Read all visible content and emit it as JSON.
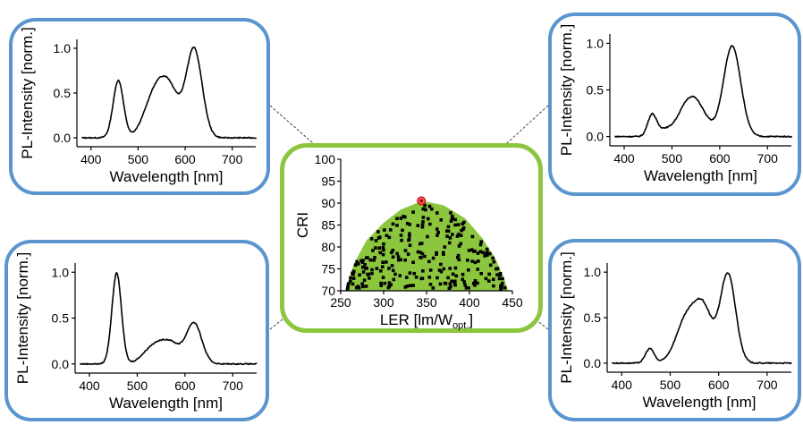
{
  "chart_data": [
    {
      "type": "line",
      "panel": "top-left",
      "xlabel": "Wavelength [nm]",
      "ylabel": "PL-Intensity [norm.]",
      "xlim": [
        370,
        750
      ],
      "ylim": [
        -0.1,
        1.1
      ],
      "xticks": [
        400,
        500,
        600,
        700
      ],
      "yticks": [
        0.0,
        0.5,
        1.0
      ],
      "peaks": [
        {
          "center": 458,
          "height": 0.64,
          "width": 11
        },
        {
          "center": 535,
          "height": 0.47,
          "width": 22
        },
        {
          "center": 568,
          "height": 0.47,
          "width": 20
        },
        {
          "center": 619,
          "height": 0.99,
          "width": 17
        }
      ]
    },
    {
      "type": "line",
      "panel": "top-right",
      "xlabel": "Wavelength [nm]",
      "ylabel": "PL-Intensity [norm.]",
      "xlim": [
        370,
        750
      ],
      "ylim": [
        -0.1,
        1.1
      ],
      "xticks": [
        400,
        500,
        600,
        700
      ],
      "yticks": [
        0.0,
        0.5,
        1.0
      ],
      "peaks": [
        {
          "center": 458,
          "height": 0.22,
          "width": 9
        },
        {
          "center": 478,
          "height": 0.06,
          "width": 14
        },
        {
          "center": 542,
          "height": 0.43,
          "width": 26
        },
        {
          "center": 626,
          "height": 0.97,
          "width": 18
        }
      ]
    },
    {
      "type": "line",
      "panel": "bottom-left",
      "xlabel": "Wavelength [nm]",
      "ylabel": "PL-Intensity [norm.]",
      "xlim": [
        370,
        750
      ],
      "ylim": [
        -0.1,
        1.1
      ],
      "xticks": [
        400,
        500,
        600,
        700
      ],
      "yticks": [
        0.0,
        0.5,
        1.0
      ],
      "peaks": [
        {
          "center": 457,
          "height": 0.99,
          "width": 10
        },
        {
          "center": 535,
          "height": 0.19,
          "width": 22
        },
        {
          "center": 572,
          "height": 0.2,
          "width": 20
        },
        {
          "center": 619,
          "height": 0.44,
          "width": 16
        }
      ]
    },
    {
      "type": "line",
      "panel": "bottom-right",
      "xlabel": "Wavelength [nm]",
      "ylabel": "PL-Intensity [norm.]",
      "xlim": [
        370,
        750
      ],
      "ylim": [
        -0.1,
        1.1
      ],
      "xticks": [
        400,
        500,
        600,
        700
      ],
      "yticks": [
        0.0,
        0.5,
        1.0
      ],
      "peaks": [
        {
          "center": 458,
          "height": 0.16,
          "width": 9
        },
        {
          "center": 535,
          "height": 0.5,
          "width": 22
        },
        {
          "center": 570,
          "height": 0.52,
          "width": 18
        },
        {
          "center": 619,
          "height": 0.98,
          "width": 16
        }
      ]
    },
    {
      "type": "scatter",
      "panel": "center",
      "xlabel": "LER [lm/W",
      "xlabel_sub": "opt.",
      "xlabel_end": "]",
      "ylabel": "CRI",
      "xlim": [
        250,
        450
      ],
      "ylim": [
        70,
        100
      ],
      "xticks": [
        250,
        300,
        350,
        400,
        450
      ],
      "yticks": [
        70,
        75,
        80,
        85,
        90,
        95,
        100
      ],
      "area_color": "#8cc63f",
      "area_boundary": {
        "x": [
          255,
          265,
          280,
          300,
          320,
          345,
          370,
          395,
          415,
          430,
          440,
          445
        ],
        "y": [
          70,
          76,
          81.5,
          85.5,
          88.5,
          90.5,
          89.5,
          86.5,
          82,
          77.5,
          73,
          70
        ]
      },
      "highlight_point": {
        "x": 344,
        "y": 90.5
      },
      "points_count": 260
    }
  ]
}
